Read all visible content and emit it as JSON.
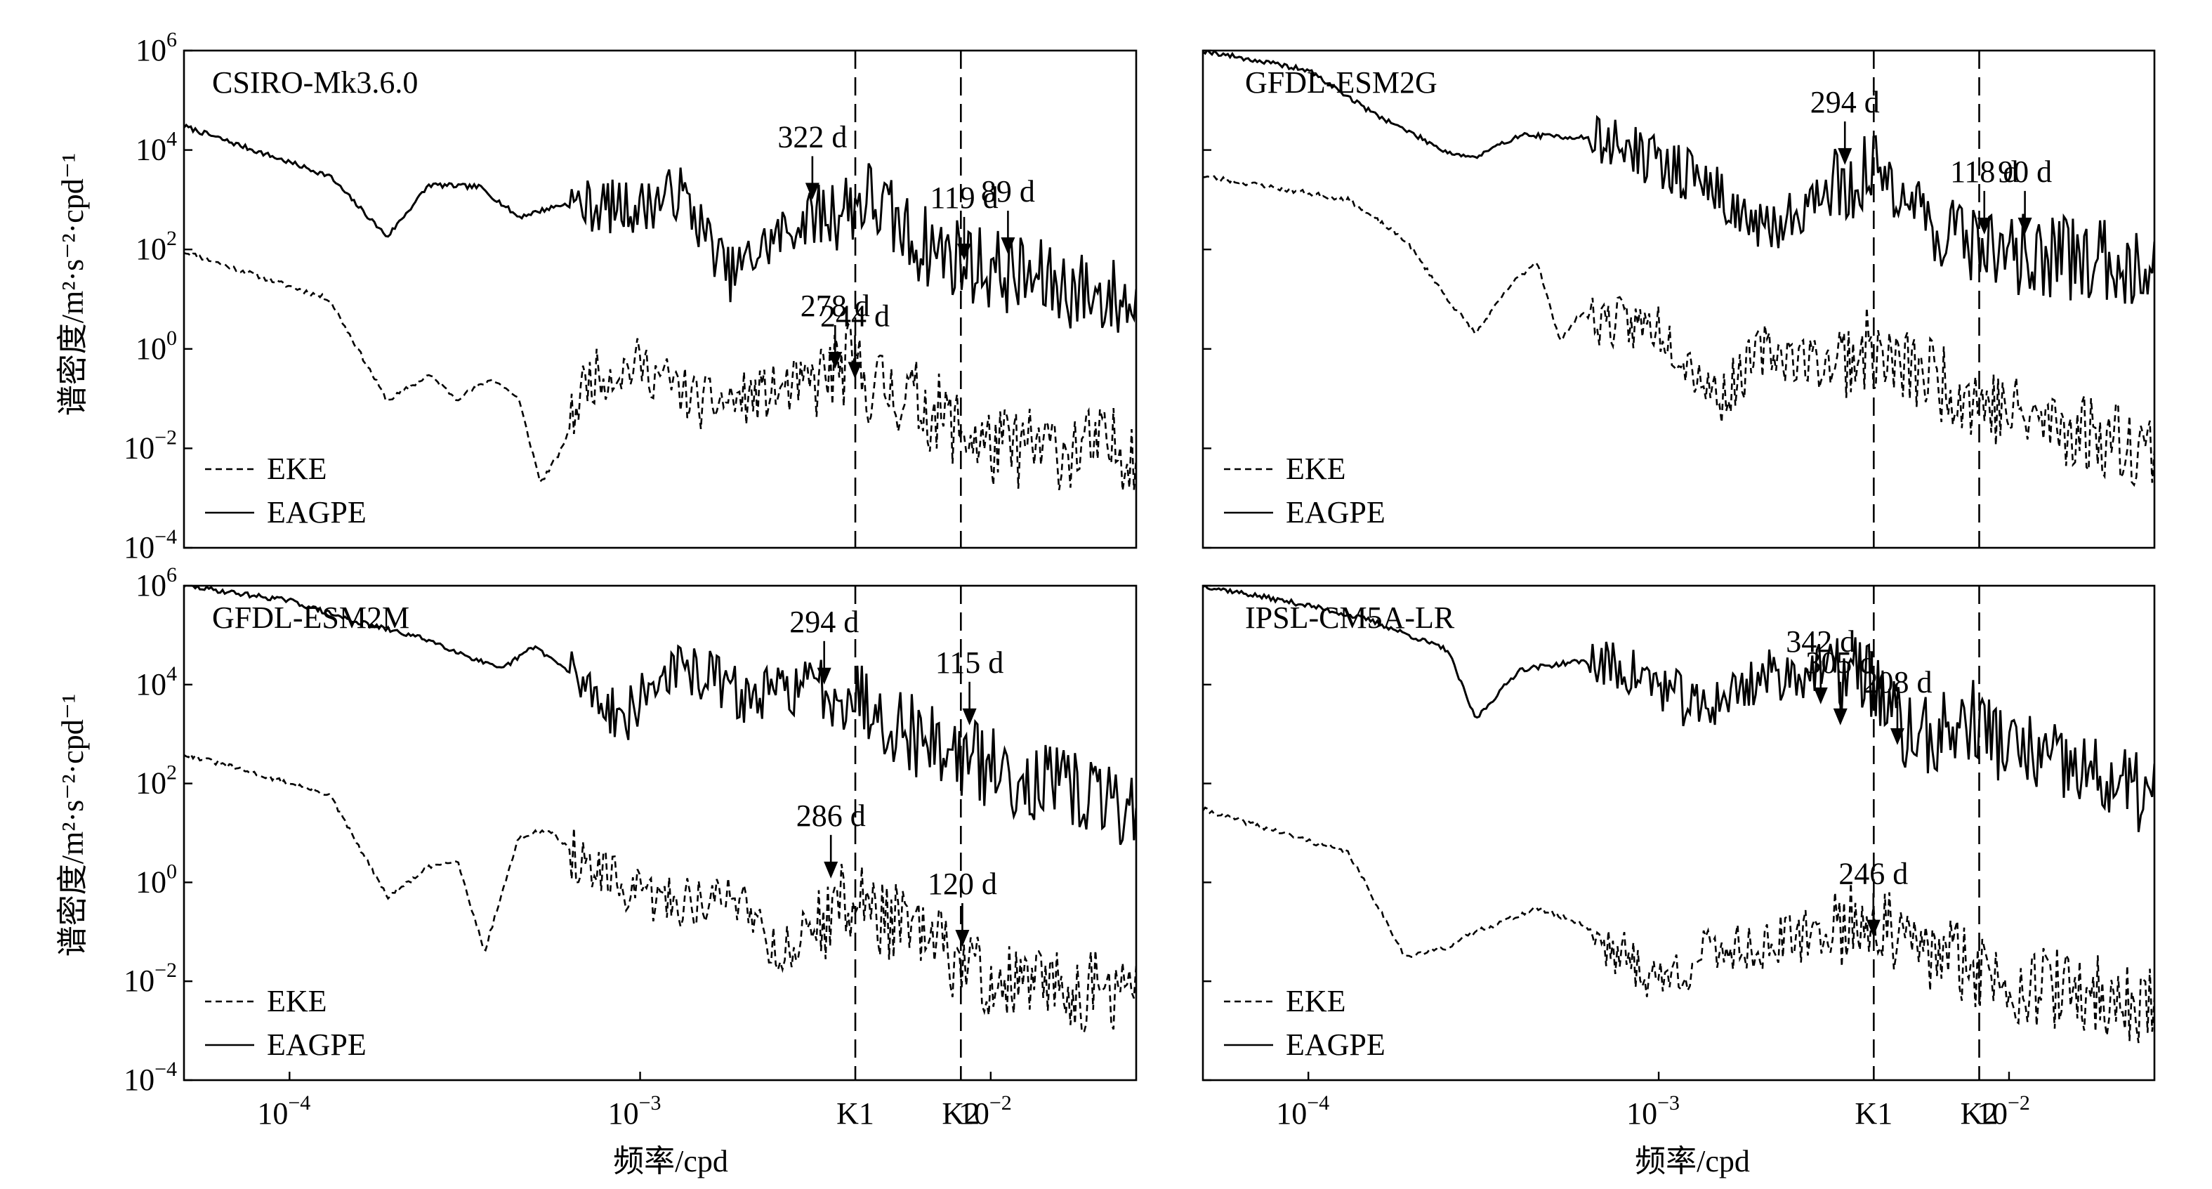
{
  "figure": {
    "ylabel": "谱密度/m²·s⁻²·cpd⁻¹",
    "xlabel": "频率/cpd",
    "k_labels": [
      "K1",
      "K2"
    ],
    "x_ticks": [
      {
        "value": 0.0001,
        "base": "10",
        "exp": "−4"
      },
      {
        "value": 0.001,
        "base": "10",
        "exp": "−3"
      },
      {
        "value": 0.01,
        "base": "10",
        "exp": "−2"
      }
    ],
    "y_ticks": [
      {
        "value": 1000000,
        "base": "10",
        "exp": "6"
      },
      {
        "value": 10000,
        "base": "10",
        "exp": "4"
      },
      {
        "value": 100,
        "base": "10",
        "exp": "2"
      },
      {
        "value": 1,
        "base": "10",
        "exp": "0"
      },
      {
        "value": 0.01,
        "base": "10",
        "exp": "−2"
      },
      {
        "value": 0.0001,
        "base": "10",
        "exp": "−4"
      }
    ],
    "legend": [
      "EKE",
      "EAGPE"
    ]
  },
  "chart_data": [
    {
      "type": "line",
      "title": "CSIRO-Mk3.6.0",
      "xscale": "log",
      "yscale": "log",
      "xlim": [
        5e-05,
        0.026
      ],
      "ylim": [
        0.0001,
        1000000
      ],
      "vlines": [
        {
          "label": "K1",
          "x": 0.00411
        },
        {
          "label": "K2",
          "x": 0.00822
        }
      ],
      "series": [
        {
          "name": "EKE",
          "style": "dashed",
          "seed": 11,
          "anchors": [
            [
              5e-05,
              90
            ],
            [
              0.00013,
              10
            ],
            [
              0.00019,
              0.09
            ],
            [
              0.00025,
              0.3
            ],
            [
              0.0003,
              0.1
            ],
            [
              0.00038,
              0.25
            ],
            [
              0.00045,
              0.1
            ],
            [
              0.00052,
              0.002
            ],
            [
              0.0006,
              0.01
            ],
            [
              0.0007,
              0.25
            ],
            [
              0.001,
              0.5
            ],
            [
              0.0015,
              0.08
            ],
            [
              0.002,
              0.1
            ],
            [
              0.003,
              0.2
            ],
            [
              0.004,
              0.5
            ],
            [
              0.0045,
              0.2
            ],
            [
              0.006,
              0.1
            ],
            [
              0.01,
              0.01
            ],
            [
              0.026,
              0.01
            ]
          ]
        },
        {
          "name": "EAGPE",
          "style": "solid",
          "seed": 7,
          "anchors": [
            [
              5e-05,
              30000
            ],
            [
              0.00013,
              3000
            ],
            [
              0.00019,
              180
            ],
            [
              0.00025,
              2000
            ],
            [
              0.00035,
              1800
            ],
            [
              0.00045,
              450
            ],
            [
              0.0006,
              800
            ],
            [
              0.001,
              700
            ],
            [
              0.0013,
              1500
            ],
            [
              0.0018,
              30
            ],
            [
              0.0025,
              200
            ],
            [
              0.003,
              400
            ],
            [
              0.004,
              800
            ],
            [
              0.0045,
              1100
            ],
            [
              0.006,
              150
            ],
            [
              0.01,
              40
            ],
            [
              0.026,
              8
            ]
          ]
        }
      ],
      "annotations": [
        {
          "text": "322 d",
          "x": 0.0031,
          "y": 1000
        },
        {
          "text": "119 d",
          "x": 0.0084,
          "y": 60
        },
        {
          "text": "89 d",
          "x": 0.0112,
          "y": 80
        },
        {
          "text": "278 d",
          "x": 0.0036,
          "y": 0.4
        },
        {
          "text": "244 d",
          "x": 0.0041,
          "y": 0.25
        }
      ]
    },
    {
      "type": "line",
      "title": "GFDL-ESM2G",
      "xscale": "log",
      "yscale": "log",
      "xlim": [
        5e-05,
        0.026
      ],
      "ylim": [
        0.0001,
        1000000
      ],
      "vlines": [
        {
          "label": "K1",
          "x": 0.00411
        },
        {
          "label": "K2",
          "x": 0.00822
        }
      ],
      "series": [
        {
          "name": "EKE",
          "style": "dashed",
          "seed": 23,
          "anchors": [
            [
              5e-05,
              3000
            ],
            [
              0.00013,
              1000
            ],
            [
              0.00019,
              150
            ],
            [
              0.00025,
              10
            ],
            [
              0.0003,
              2
            ],
            [
              0.00038,
              20
            ],
            [
              0.00045,
              60
            ],
            [
              0.00052,
              1.5
            ],
            [
              0.0006,
              5
            ],
            [
              0.0008,
              3
            ],
            [
              0.001,
              3
            ],
            [
              0.0015,
              0.1
            ],
            [
              0.002,
              1
            ],
            [
              0.003,
              0.5
            ],
            [
              0.004,
              1
            ],
            [
              0.0045,
              0.5
            ],
            [
              0.006,
              0.3
            ],
            [
              0.01,
              0.05
            ],
            [
              0.026,
              0.01
            ]
          ]
        },
        {
          "name": "EAGPE",
          "style": "solid",
          "seed": 19,
          "anchors": [
            [
              5e-05,
              1000000
            ],
            [
              0.0001,
              400000
            ],
            [
              0.00015,
              60000
            ],
            [
              0.00025,
              9000
            ],
            [
              0.0003,
              7000
            ],
            [
              0.0004,
              20000
            ],
            [
              0.0006,
              18000
            ],
            [
              0.0008,
              12000
            ],
            [
              0.001,
              5000
            ],
            [
              0.0013,
              3000
            ],
            [
              0.002,
              200
            ],
            [
              0.003,
              1500
            ],
            [
              0.0045,
              4000
            ],
            [
              0.006,
              300
            ],
            [
              0.01,
              80
            ],
            [
              0.026,
              50
            ]
          ]
        }
      ],
      "annotations": [
        {
          "text": "294 d",
          "x": 0.0034,
          "y": 5000
        },
        {
          "text": "118 d",
          "x": 0.0085,
          "y": 200
        },
        {
          "text": "90 d",
          "x": 0.0111,
          "y": 200
        }
      ]
    },
    {
      "type": "line",
      "title": "GFDL-ESM2M",
      "xscale": "log",
      "yscale": "log",
      "xlim": [
        5e-05,
        0.026
      ],
      "ylim": [
        0.0001,
        1000000
      ],
      "vlines": [
        {
          "label": "K1",
          "x": 0.00411
        },
        {
          "label": "K2",
          "x": 0.00822
        }
      ],
      "series": [
        {
          "name": "EKE",
          "style": "dashed",
          "seed": 31,
          "anchors": [
            [
              5e-05,
              400
            ],
            [
              0.00013,
              60
            ],
            [
              0.00019,
              0.5
            ],
            [
              0.00025,
              2
            ],
            [
              0.0003,
              3
            ],
            [
              0.00036,
              0.04
            ],
            [
              0.00045,
              8
            ],
            [
              0.00055,
              12
            ],
            [
              0.0007,
              2
            ],
            [
              0.001,
              0.5
            ],
            [
              0.0015,
              0.4
            ],
            [
              0.002,
              0.5
            ],
            [
              0.0025,
              0.03
            ],
            [
              0.003,
              0.1
            ],
            [
              0.004,
              0.5
            ],
            [
              0.005,
              0.2
            ],
            [
              0.007,
              0.05
            ],
            [
              0.01,
              0.01
            ],
            [
              0.026,
              0.005
            ]
          ]
        },
        {
          "name": "EAGPE",
          "style": "solid",
          "seed": 29,
          "anchors": [
            [
              5e-05,
              1000000
            ],
            [
              0.0001,
              500000
            ],
            [
              0.00015,
              200000
            ],
            [
              0.00025,
              80000
            ],
            [
              0.0004,
              20000
            ],
            [
              0.0005,
              60000
            ],
            [
              0.0007,
              10000
            ],
            [
              0.0009,
              2000
            ],
            [
              0.0012,
              20000
            ],
            [
              0.0016,
              15000
            ],
            [
              0.002,
              5000
            ],
            [
              0.003,
              10000
            ],
            [
              0.004,
              8000
            ],
            [
              0.006,
              1000
            ],
            [
              0.01,
              200
            ],
            [
              0.026,
              30
            ]
          ]
        }
      ],
      "annotations": [
        {
          "text": "294 d",
          "x": 0.00335,
          "y": 10000
        },
        {
          "text": "115 d",
          "x": 0.0087,
          "y": 1500
        },
        {
          "text": "286 d",
          "x": 0.0035,
          "y": 1.2
        },
        {
          "text": "120 d",
          "x": 0.0083,
          "y": 0.05
        }
      ]
    },
    {
      "type": "line",
      "title": "IPSL-CM5A-LR",
      "xscale": "log",
      "yscale": "log",
      "xlim": [
        5e-05,
        0.026
      ],
      "ylim": [
        0.0001,
        1000000
      ],
      "vlines": [
        {
          "label": "K1",
          "x": 0.00411
        },
        {
          "label": "K2",
          "x": 0.00822
        }
      ],
      "series": [
        {
          "name": "EKE",
          "style": "dashed",
          "seed": 41,
          "anchors": [
            [
              5e-05,
              30
            ],
            [
              0.00013,
              4
            ],
            [
              0.00019,
              0.03
            ],
            [
              0.00025,
              0.05
            ],
            [
              0.0003,
              0.1
            ],
            [
              0.00045,
              0.3
            ],
            [
              0.0006,
              0.15
            ],
            [
              0.0008,
              0.03
            ],
            [
              0.001,
              0.01
            ],
            [
              0.0012,
              0.02
            ],
            [
              0.0015,
              0.05
            ],
            [
              0.002,
              0.05
            ],
            [
              0.003,
              0.1
            ],
            [
              0.004,
              0.2
            ],
            [
              0.005,
              0.05
            ],
            [
              0.007,
              0.03
            ],
            [
              0.01,
              0.01
            ],
            [
              0.026,
              0.003
            ]
          ]
        },
        {
          "name": "EAGPE",
          "style": "solid",
          "seed": 37,
          "anchors": [
            [
              5e-05,
              1000000
            ],
            [
              0.0001,
              400000
            ],
            [
              0.00015,
              200000
            ],
            [
              0.00025,
              50000
            ],
            [
              0.0003,
              2000
            ],
            [
              0.0004,
              20000
            ],
            [
              0.0006,
              30000
            ],
            [
              0.0008,
              20000
            ],
            [
              0.001,
              10000
            ],
            [
              0.0013,
              3000
            ],
            [
              0.002,
              15000
            ],
            [
              0.003,
              20000
            ],
            [
              0.004,
              15000
            ],
            [
              0.005,
              1000
            ],
            [
              0.006,
              800
            ],
            [
              0.008,
              2000
            ],
            [
              0.01,
              500
            ],
            [
              0.026,
              50
            ]
          ]
        }
      ],
      "annotations": [
        {
          "text": "342 d",
          "x": 0.0029,
          "y": 4000
        },
        {
          "text": "305 d",
          "x": 0.0033,
          "y": 1500
        },
        {
          "text": "208 d",
          "x": 0.0048,
          "y": 600
        },
        {
          "text": "246 d",
          "x": 0.0041,
          "y": 0.08
        }
      ]
    }
  ]
}
